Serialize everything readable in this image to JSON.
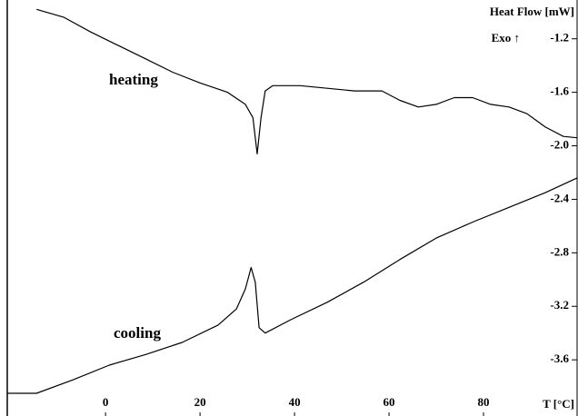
{
  "chart_data": {
    "type": "line",
    "y_axis_label": "Heat Flow [mW]",
    "exo_label": "Exo ↑",
    "x_axis_label": "T [°C]",
    "xlim": [
      -20.8,
      100
    ],
    "xticks": [
      0,
      20,
      40,
      60,
      80
    ],
    "ylim": [
      -4.02,
      -0.91
    ],
    "yticks": [
      -1.2,
      -1.6,
      {
        "value": -2.0,
        "label": "-2.0"
      },
      -2.4,
      -2.8,
      -3.2,
      -3.6
    ],
    "series": [
      {
        "name": "heating",
        "color": "#000000",
        "x": [
          -14.6,
          -8.8,
          -3.1,
          2.7,
          8.5,
          14.2,
          20,
          25.8,
          29.6,
          31.2,
          32.1,
          32.9,
          33.8,
          35.4,
          41.2,
          46.9,
          52.7,
          58.5,
          62.3,
          66.2,
          70,
          73.8,
          77.7,
          81.5,
          85.4,
          89.2,
          93.1,
          96.9,
          99.8
        ],
        "values": [
          -0.98,
          -1.04,
          -1.15,
          -1.25,
          -1.35,
          -1.45,
          -1.53,
          -1.6,
          -1.69,
          -1.79,
          -2.06,
          -1.79,
          -1.59,
          -1.55,
          -1.55,
          -1.57,
          -1.59,
          -1.59,
          -1.66,
          -1.71,
          -1.69,
          -1.64,
          -1.64,
          -1.69,
          -1.71,
          -1.76,
          -1.86,
          -1.93,
          -1.94
        ]
      },
      {
        "name": "cooling",
        "color": "#000000",
        "x": [
          -20.8,
          -14.6,
          -6.9,
          0.8,
          8.5,
          16.2,
          23.8,
          27.7,
          29.6,
          30.8,
          31.7,
          32.5,
          33.8,
          39.2,
          46.9,
          54.6,
          62.3,
          70,
          77.7,
          85.4,
          93.1,
          99.8
        ],
        "values": [
          -3.85,
          -3.85,
          -3.75,
          -3.64,
          -3.56,
          -3.47,
          -3.34,
          -3.22,
          -3.07,
          -2.91,
          -3.02,
          -3.36,
          -3.4,
          -3.3,
          -3.17,
          -3.02,
          -2.85,
          -2.69,
          -2.57,
          -2.46,
          -2.35,
          -2.24
        ]
      }
    ]
  }
}
